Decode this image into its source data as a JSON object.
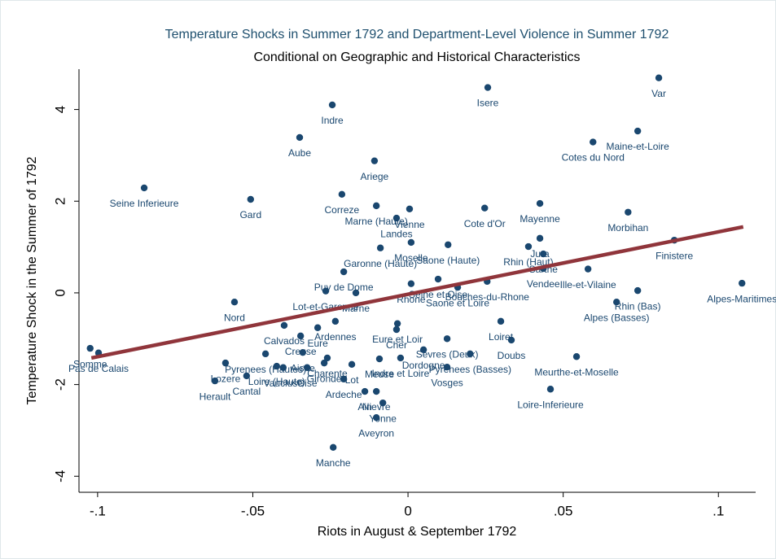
{
  "chart_data": {
    "type": "scatter",
    "title": "Temperature Shocks in Summer 1792 and Department-Level Violence in Summer 1792",
    "subtitle": "Conditional on Geographic and Historical Characteristics",
    "x_label": "Riots in August & September 1792",
    "y_label": "Temperature Shock in the Summer of 1792",
    "color": "#1a476f",
    "labels": [
      "Var",
      "Isere",
      "Indre",
      "Aube",
      "Ariege",
      "Maine-et-Loire",
      "Cotes du Nord",
      "Seine Inferieure",
      "Gard",
      "Correze",
      "Marne (Haute)",
      "Vienne",
      "Landes",
      "Cote d'Or",
      "Mayenne",
      "Morbihan",
      "Jura",
      "Finistere",
      "Saone (Haute)",
      "Moselle",
      "Garonne (Haute)",
      "Rhin (Haut)",
      "Sarthe",
      "Puy de Dome",
      "Seine et Oise",
      "Ille-et-Vilaine",
      "Vendee",
      "Marne",
      "Alpes-Maritimes",
      "Rhin (Bas)",
      "Alpes (Basses)",
      "Rhone",
      "Saone et Loire",
      "Bouches-du-Rhone",
      "Nord",
      "Lot-et-Garonne",
      "Ardennes",
      "Eure",
      "Calvados",
      "Eure et Loir",
      "Loiret",
      "Doubs",
      "Pyrenees (Basses)",
      "Meurthe-et-Moselle",
      "Loire-Inferieure",
      "Dordogne",
      "Sevres (Deux)",
      "Vosges",
      "Somme",
      "Pas de Calais",
      "Lozere",
      "Herault",
      "Cantal",
      "Loire (Haute)",
      "Vaucluse",
      "Oise",
      "Gironde",
      "Lot",
      "Ardeche",
      "Meuse",
      "Ain",
      "Nievre",
      "Yonne",
      "Aveyron",
      "Manche",
      "Creuse",
      "Pyrenees (Hautes)",
      "Aisne",
      "Charente",
      "Indre et Loire",
      "Cher"
    ],
    "x": [
      0.0808,
      0.0257,
      -0.0244,
      -0.0349,
      -0.0108,
      0.074,
      0.0596,
      -0.085,
      -0.0507,
      -0.0213,
      -0.0102,
      0.0005,
      -0.0037,
      0.0247,
      0.0425,
      0.0709,
      0.0425,
      0.0858,
      0.0129,
      0.001,
      -0.0089,
      0.0388,
      0.0436,
      -0.0207,
      0.0097,
      0.058,
      0.0436,
      -0.0168,
      0.1076,
      0.074,
      0.0672,
      0.001,
      0.016,
      0.0255,
      -0.0559,
      -0.0265,
      -0.0234,
      -0.0291,
      -0.0399,
      -0.0034,
      0.0299,
      0.0333,
      0.02,
      0.0543,
      0.0459,
      0.005,
      0.0126,
      0.0126,
      -0.1024,
      -0.0997,
      -0.0588,
      -0.0622,
      -0.052,
      -0.0423,
      -0.0402,
      -0.0325,
      -0.027,
      -0.0181,
      -0.0207,
      -0.0092,
      -0.0139,
      -0.0102,
      -0.0081,
      -0.0102,
      -0.0241,
      -0.0346,
      -0.0459,
      -0.0339,
      -0.026,
      -0.0024,
      -0.0037
    ],
    "y": [
      4.69,
      4.48,
      4.1,
      3.39,
      2.88,
      3.53,
      3.29,
      2.29,
      2.04,
      2.15,
      1.9,
      1.83,
      1.63,
      1.85,
      1.95,
      1.76,
      1.19,
      1.15,
      1.05,
      1.1,
      0.98,
      1.01,
      0.85,
      0.46,
      0.3,
      0.52,
      0.53,
      0.0,
      0.21,
      0.05,
      -0.2,
      0.2,
      0.12,
      0.25,
      -0.2,
      0.04,
      -0.62,
      -0.76,
      -0.71,
      -0.67,
      -0.62,
      -1.03,
      -1.33,
      -1.39,
      -2.1,
      -1.24,
      -1.0,
      -1.62,
      -1.21,
      -1.31,
      -1.53,
      -1.92,
      -1.81,
      -1.6,
      -1.63,
      -1.63,
      -1.53,
      -1.56,
      -1.88,
      -1.44,
      -2.15,
      -2.15,
      -2.4,
      -2.72,
      -3.37,
      -0.94,
      -1.33,
      -1.3,
      -1.42,
      -1.42,
      -0.8
    ],
    "fit": {
      "color": "#90353b",
      "x": [
        -0.102,
        0.108
      ],
      "y": [
        -1.42,
        1.44
      ]
    },
    "xlim": [
      -0.106,
      0.112
    ],
    "xticks": [
      {
        "value": -0.1,
        "label": "-.1"
      },
      {
        "value": -0.05,
        "label": "-.05"
      },
      0,
      {
        "value": 0.05,
        "label": ".05"
      },
      {
        "value": 0.1,
        "label": ".1"
      }
    ],
    "ylim": [
      -4.35,
      4.88
    ],
    "yticks": [
      -4,
      -2,
      0,
      2,
      4
    ]
  }
}
